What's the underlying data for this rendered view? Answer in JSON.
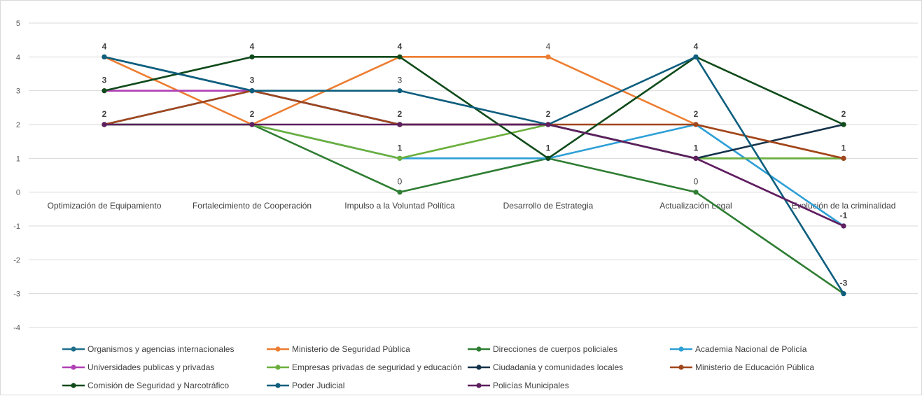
{
  "chart_data": {
    "type": "line",
    "title": "",
    "xlabel": "",
    "ylabel": "",
    "ylim": [
      -4,
      5
    ],
    "yticks": [
      5,
      4,
      3,
      2,
      1,
      0,
      -1,
      -2,
      -3,
      -4
    ],
    "grid": true,
    "legend_position": "bottom",
    "categories": [
      "Optimización de Equipamiento",
      "Fortalecimiento de Cooperación",
      "Impulso a la Voluntad Política",
      "Desarrollo de Estrategia",
      "Actualización Legal",
      "Evolución de la criminalidad"
    ],
    "series": [
      {
        "name": "Organismos y agencias internacionales",
        "color": "#1f6e8c",
        "values": [
          4,
          3,
          2,
          2,
          1,
          1
        ]
      },
      {
        "name": "Ministerio de Seguridad Pública",
        "color": "#ed7d31",
        "values": [
          4,
          2,
          4,
          4,
          2,
          1
        ]
      },
      {
        "name": "Direcciones de cuerpos policiales",
        "color": "#2e7d32",
        "values": [
          2,
          2,
          0,
          1,
          0,
          -3
        ]
      },
      {
        "name": "Academia Nacional de Policía",
        "color": "#2e9fd6",
        "values": [
          2,
          2,
          1,
          1,
          2,
          -1
        ]
      },
      {
        "name": "Universidades publicas y privadas",
        "color": "#b040b5",
        "values": [
          3,
          3,
          2,
          2,
          1,
          -1
        ]
      },
      {
        "name": "Empresas privadas de seguridad y educación",
        "color": "#6aaf3d",
        "values": [
          2,
          2,
          1,
          2,
          1,
          1
        ]
      },
      {
        "name": "Ciudadanía y comunidades locales",
        "color": "#14324a",
        "values": [
          2,
          3,
          2,
          2,
          1,
          2
        ]
      },
      {
        "name": "Ministerio de Educación Pública",
        "color": "#a0461c",
        "values": [
          2,
          3,
          2,
          2,
          2,
          1
        ]
      },
      {
        "name": "Comisión de Seguridad y Narcotráfico",
        "color": "#0f4a1a",
        "values": [
          3,
          4,
          4,
          1,
          4,
          2
        ]
      },
      {
        "name": "Poder Judicial",
        "color": "#0e5e7e",
        "values": [
          4,
          3,
          3,
          2,
          4,
          -3
        ]
      },
      {
        "name": "Policías Municipales",
        "color": "#5e1f5e",
        "values": [
          2,
          2,
          2,
          2,
          1,
          -1
        ]
      }
    ],
    "data_labels": [
      {
        "category": 0,
        "value": 4,
        "text": "4",
        "bold": true
      },
      {
        "category": 0,
        "value": 3,
        "text": "3",
        "bold": true
      },
      {
        "category": 0,
        "value": 2,
        "text": "2",
        "bold": true
      },
      {
        "category": 1,
        "value": 4,
        "text": "4",
        "bold": true
      },
      {
        "category": 1,
        "value": 3,
        "text": "3",
        "bold": true
      },
      {
        "category": 1,
        "value": 2,
        "text": "2",
        "bold": true
      },
      {
        "category": 2,
        "value": 4,
        "text": "4",
        "bold": true
      },
      {
        "category": 2,
        "value": 3,
        "text": "3",
        "bold": false
      },
      {
        "category": 2,
        "value": 2,
        "text": "2",
        "bold": true
      },
      {
        "category": 2,
        "value": 1,
        "text": "1",
        "bold": true
      },
      {
        "category": 2,
        "value": 0,
        "text": "0",
        "bold": false
      },
      {
        "category": 3,
        "value": 4,
        "text": "4",
        "bold": false
      },
      {
        "category": 3,
        "value": 2,
        "text": "2",
        "bold": true
      },
      {
        "category": 3,
        "value": 1,
        "text": "1",
        "bold": true
      },
      {
        "category": 4,
        "value": 4,
        "text": "4",
        "bold": true
      },
      {
        "category": 4,
        "value": 2,
        "text": "2",
        "bold": true
      },
      {
        "category": 4,
        "value": 1,
        "text": "1",
        "bold": true
      },
      {
        "category": 4,
        "value": 0,
        "text": "0",
        "bold": false
      },
      {
        "category": 5,
        "value": 2,
        "text": "2",
        "bold": true
      },
      {
        "category": 5,
        "value": 1,
        "text": "1",
        "bold": true
      },
      {
        "category": 5,
        "value": -1,
        "text": "-1",
        "bold": true
      },
      {
        "category": 5,
        "value": -3,
        "text": "-3",
        "bold": true
      }
    ]
  }
}
